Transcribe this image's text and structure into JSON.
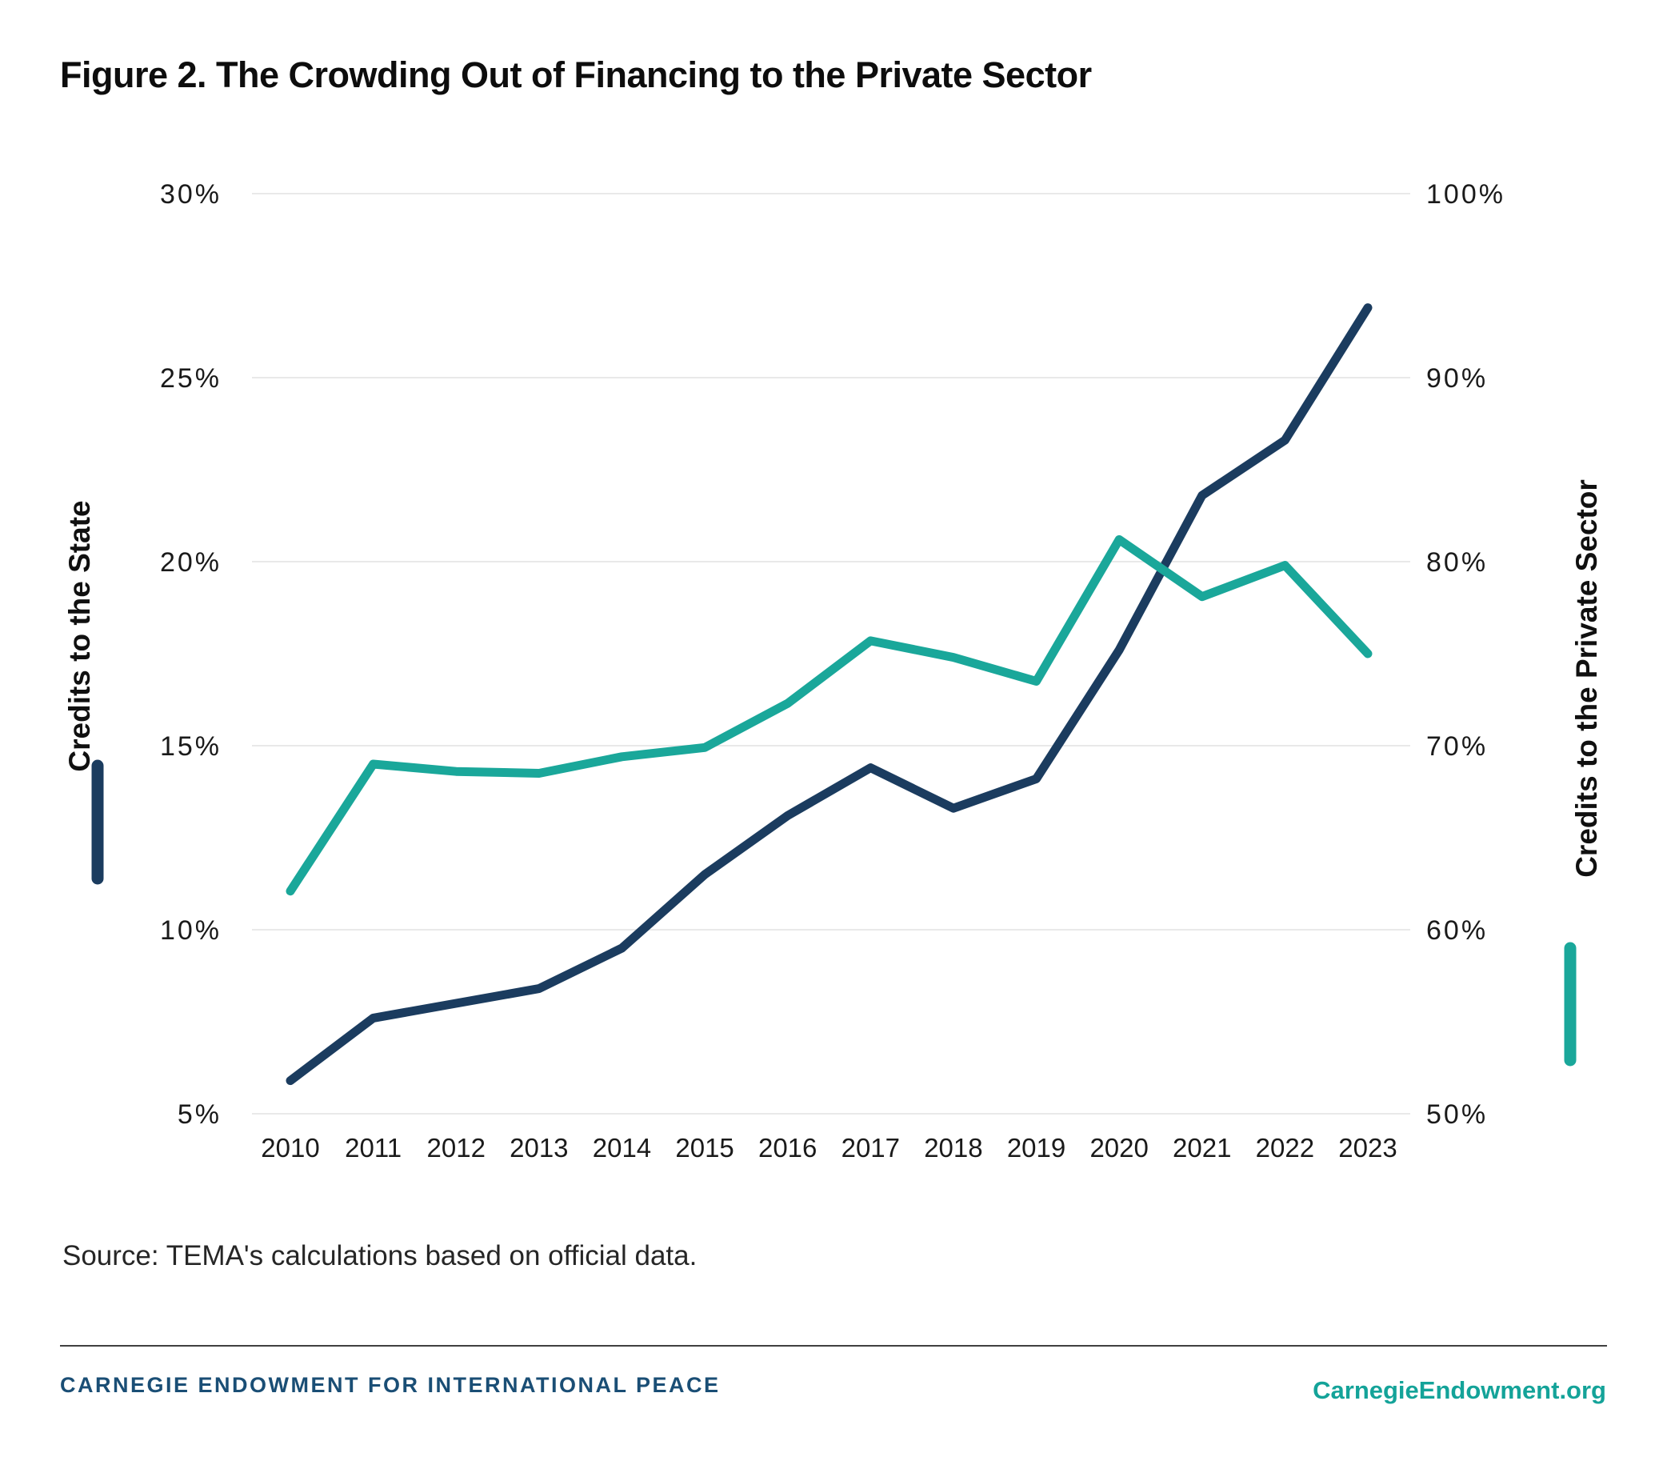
{
  "title": "Figure 2. The Crowding Out of Financing to the Private Sector",
  "source": "Source: TEMA's calculations based on official data.",
  "footer": {
    "left": "CARNEGIE ENDOWMENT FOR INTERNATIONAL PEACE",
    "right": "CarnegieEndowment.org"
  },
  "colors": {
    "state_line": "#1b3c5f",
    "private_line": "#1aa79a",
    "gridline": "#e9e9e9",
    "tick_text": "#1a1a1a",
    "axis_title_text": "#101010",
    "footer_left_text": "#1a4e75",
    "footer_right_text": "#14a399"
  },
  "chart_data": {
    "type": "line",
    "title": "Figure 2. The Crowding Out of Financing to the Private Sector",
    "x": [
      2010,
      2011,
      2012,
      2013,
      2014,
      2015,
      2016,
      2017,
      2018,
      2019,
      2020,
      2021,
      2022,
      2023
    ],
    "series": [
      {
        "name": "Credits to the State",
        "axis": "left",
        "color_key": "state_line",
        "values": [
          5.9,
          7.6,
          8.0,
          8.4,
          9.5,
          11.5,
          13.1,
          14.4,
          13.3,
          14.1,
          17.6,
          21.8,
          23.3,
          26.9
        ]
      },
      {
        "name": "Credits to the Private Sector",
        "axis": "right",
        "color_key": "private_line",
        "values": [
          62.1,
          69.0,
          68.6,
          68.5,
          69.4,
          69.9,
          72.3,
          75.7,
          74.8,
          73.5,
          81.2,
          78.1,
          79.8,
          75.0
        ]
      }
    ],
    "left_axis": {
      "label": "Credits to the State",
      "range": [
        5,
        30
      ],
      "tick_values": [
        30,
        25,
        20,
        15,
        10,
        5
      ],
      "tick_labels": [
        "30%",
        "25%",
        "20%",
        "15%",
        "10%",
        "5%"
      ]
    },
    "right_axis": {
      "label": "Credits to the Private Sector",
      "range": [
        50,
        100
      ],
      "tick_values": [
        100,
        90,
        80,
        70,
        60,
        50
      ],
      "tick_labels": [
        "100%",
        "90%",
        "80%",
        "70%",
        "60%",
        "50%"
      ]
    },
    "grid": "horizontal only",
    "legend_position": "rotated axis titles with color swatches"
  }
}
